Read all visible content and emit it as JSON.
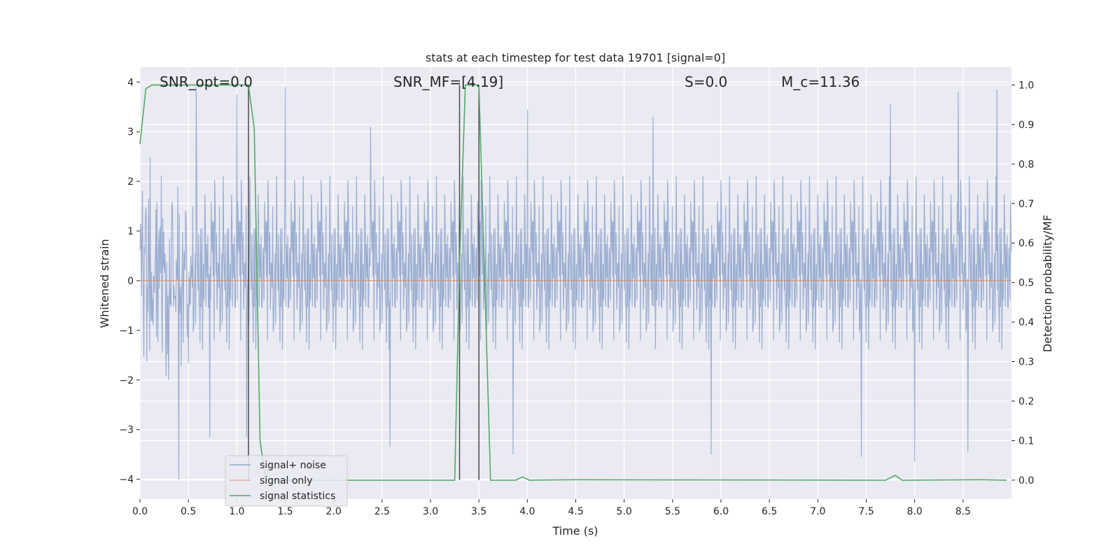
{
  "chart_data": {
    "type": "line",
    "title": "stats at each timestep for test data 19701 [signal=0]",
    "xlabel": "Time (s)",
    "ylabel_left": "Whitened strain",
    "ylabel_right": "Detection probability/MF",
    "xlim": [
      0.0,
      9.0
    ],
    "ylim_left": [
      -4.4,
      4.3
    ],
    "ylim_right": [
      -0.048,
      1.045
    ],
    "xticks": [
      "0.0",
      "0.5",
      "1.0",
      "1.5",
      "2.0",
      "2.5",
      "3.0",
      "3.5",
      "4.0",
      "4.5",
      "5.0",
      "5.5",
      "6.0",
      "6.5",
      "7.0",
      "7.5",
      "8.0",
      "8.5"
    ],
    "yticks_left": [
      "−4",
      "−3",
      "−2",
      "−1",
      "0",
      "1",
      "2",
      "3",
      "4"
    ],
    "yticks_right": [
      "0.0",
      "0.1",
      "0.2",
      "0.3",
      "0.4",
      "0.5",
      "0.6",
      "0.7",
      "0.8",
      "0.9",
      "1.0"
    ],
    "grid": true,
    "legend_position": "bottom-left",
    "annotations": [
      {
        "text": "SNR_opt=0.0",
        "x": 0.2
      },
      {
        "text": "SNR_MF=[4.19]",
        "x": 2.6
      },
      {
        "text": "S=0.0",
        "x": 5.6
      },
      {
        "text": "M_c=11.36",
        "x": 6.6
      }
    ],
    "vlines": [
      1.12,
      3.3,
      3.5
    ],
    "series": [
      {
        "name": "signal+ noise",
        "color": "#4c72b0",
        "axis": "left",
        "envelope": {
          "typical_amplitude": 1.5,
          "max_peak": 4.0,
          "min_trough": -4.0
        },
        "notable_peaks": [
          {
            "x": 0.58,
            "y": 3.9
          },
          {
            "x": 1.0,
            "y": 3.75
          },
          {
            "x": 1.5,
            "y": 3.9
          },
          {
            "x": 2.38,
            "y": 3.1
          },
          {
            "x": 4.0,
            "y": 3.45
          },
          {
            "x": 5.3,
            "y": 3.3
          },
          {
            "x": 7.75,
            "y": 3.55
          },
          {
            "x": 8.45,
            "y": 3.8
          },
          {
            "x": 8.85,
            "y": 3.85
          }
        ],
        "notable_troughs": [
          {
            "x": 0.4,
            "y": -4.0
          },
          {
            "x": 0.72,
            "y": -3.15
          },
          {
            "x": 1.1,
            "y": -3.15
          },
          {
            "x": 2.58,
            "y": -3.35
          },
          {
            "x": 3.85,
            "y": -3.5
          },
          {
            "x": 5.9,
            "y": -3.5
          },
          {
            "x": 7.45,
            "y": -3.55
          },
          {
            "x": 8.0,
            "y": -3.65
          },
          {
            "x": 8.55,
            "y": -3.45
          }
        ]
      },
      {
        "name": "signal only",
        "color": "#dd8452",
        "axis": "left",
        "x": [
          0.0,
          9.0
        ],
        "y": [
          0.0,
          0.0
        ]
      },
      {
        "name": "signal statistics",
        "color": "#55a868",
        "axis": "right",
        "x": [
          0.0,
          0.06,
          0.12,
          0.5,
          1.0,
          1.12,
          1.18,
          1.24,
          1.3,
          3.25,
          3.3,
          3.36,
          3.42,
          3.5,
          3.56,
          3.62,
          3.88,
          3.95,
          4.02,
          4.5,
          7.7,
          7.8,
          7.87,
          8.7,
          8.95
        ],
        "y": [
          0.85,
          0.99,
          1.0,
          1.0,
          1.0,
          1.0,
          0.89,
          0.1,
          0.0,
          0.0,
          0.55,
          1.0,
          1.0,
          1.0,
          0.5,
          0.0,
          0.0,
          0.008,
          0.0,
          0.001,
          0.0,
          0.012,
          0.0,
          0.001,
          0.0
        ]
      }
    ]
  }
}
